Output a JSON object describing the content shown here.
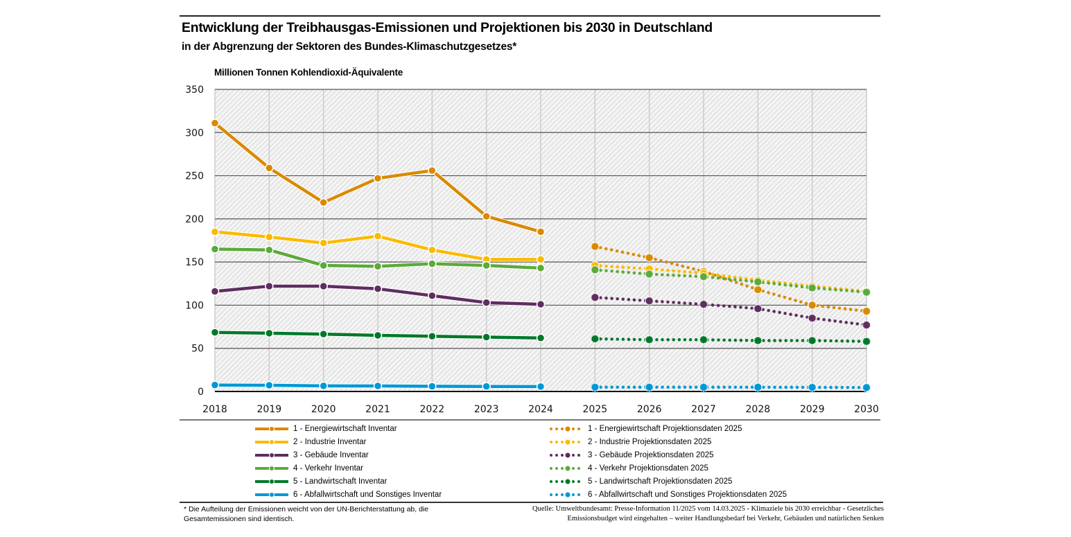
{
  "header": {
    "title": "Entwicklung der Treibhausgas-Emissionen und Projektionen bis 2030 in Deutschland",
    "subtitle": "in der Abgrenzung der Sektoren des Bundes-Klimaschutzgesetzes*",
    "unit_label": "Millionen Tonnen Kohlendioxid-Äquivalente"
  },
  "chart_data": {
    "type": "line",
    "title": "Entwicklung der Treibhausgas-Emissionen und Projektionen bis 2030 in Deutschland",
    "subtitle": "in der Abgrenzung der Sektoren des Bundes-Klimaschutzgesetzes*",
    "xlabel": "",
    "ylabel": "Millionen Tonnen Kohlendioxid-Äquivalente",
    "ylim": [
      0,
      350
    ],
    "yticks": [
      0,
      50,
      100,
      150,
      200,
      250,
      300,
      350
    ],
    "x": [
      2018,
      2019,
      2020,
      2021,
      2022,
      2023,
      2024,
      2025,
      2026,
      2027,
      2028,
      2029,
      2030
    ],
    "grid": true,
    "legend_position": "bottom",
    "series": [
      {
        "name": "1 - Energiewirtschaft Inventar",
        "style": "solid",
        "color": "#D98A00",
        "x": [
          2018,
          2019,
          2020,
          2021,
          2022,
          2023,
          2024
        ],
        "values": [
          311,
          259,
          219,
          247,
          256,
          203,
          185
        ]
      },
      {
        "name": "2 - Industrie Inventar",
        "style": "solid",
        "color": "#FBBA00",
        "x": [
          2018,
          2019,
          2020,
          2021,
          2022,
          2023,
          2024
        ],
        "values": [
          185,
          179,
          172,
          180,
          164,
          153,
          153
        ]
      },
      {
        "name": "3 - Gebäude Inventar",
        "style": "solid",
        "color": "#5F2D5F",
        "x": [
          2018,
          2019,
          2020,
          2021,
          2022,
          2023,
          2024
        ],
        "values": [
          116,
          122,
          122,
          119,
          111,
          103,
          101
        ]
      },
      {
        "name": "4 - Verkehr Inventar",
        "style": "solid",
        "color": "#5BAA3A",
        "x": [
          2018,
          2019,
          2020,
          2021,
          2022,
          2023,
          2024
        ],
        "values": [
          165,
          164,
          146,
          145,
          148,
          146,
          143
        ]
      },
      {
        "name": "5 - Landwirtschaft Inventar",
        "style": "solid",
        "color": "#00782A",
        "x": [
          2018,
          2019,
          2020,
          2021,
          2022,
          2023,
          2024
        ],
        "values": [
          68.5,
          67.5,
          66.5,
          65,
          64,
          63,
          62
        ]
      },
      {
        "name": "6 - Abfallwirtschaft und Sonstiges Inventar",
        "style": "solid",
        "color": "#0098D4",
        "x": [
          2018,
          2019,
          2020,
          2021,
          2022,
          2023,
          2024
        ],
        "values": [
          7.5,
          7.2,
          6.5,
          6.4,
          6,
          5.9,
          5.7
        ]
      },
      {
        "name": "1 - Energiewirtschaft Projektionsdaten 2025",
        "style": "dotted",
        "color": "#D98A00",
        "x": [
          2025,
          2026,
          2027,
          2028,
          2029,
          2030
        ],
        "values": [
          168,
          155,
          139,
          118,
          100,
          93
        ]
      },
      {
        "name": "2 - Industrie Projektionsdaten 2025",
        "style": "dotted",
        "color": "#FBBA00",
        "x": [
          2025,
          2026,
          2027,
          2028,
          2029,
          2030
        ],
        "values": [
          146,
          142,
          137,
          129,
          122,
          116
        ]
      },
      {
        "name": "3 - Gebäude Projektionsdaten 2025",
        "style": "dotted",
        "color": "#5F2D5F",
        "x": [
          2025,
          2026,
          2027,
          2028,
          2029,
          2030
        ],
        "values": [
          109,
          105,
          101,
          96,
          85,
          77
        ]
      },
      {
        "name": "4 - Verkehr Projektionsdaten 2025",
        "style": "dotted",
        "color": "#5BAA3A",
        "x": [
          2025,
          2026,
          2027,
          2028,
          2029,
          2030
        ],
        "values": [
          141,
          136,
          133,
          127,
          120,
          115
        ]
      },
      {
        "name": "5 - Landwirtschaft Projektionsdaten 2025",
        "style": "dotted",
        "color": "#00782A",
        "x": [
          2025,
          2026,
          2027,
          2028,
          2029,
          2030
        ],
        "values": [
          61,
          60,
          60,
          59,
          59,
          58
        ]
      },
      {
        "name": "6 - Abfallwirtschaft und Sonstiges Projektionsdaten 2025",
        "style": "dotted",
        "color": "#0098D4",
        "x": [
          2025,
          2026,
          2027,
          2028,
          2029,
          2030
        ],
        "values": [
          5,
          5,
          5,
          5,
          4.8,
          4.6
        ]
      }
    ]
  },
  "legend": {
    "inventory": [
      {
        "label": "1 - Energiewirtschaft Inventar",
        "color": "#D98A00"
      },
      {
        "label": "2 - Industrie Inventar",
        "color": "#FBBA00"
      },
      {
        "label": "3 - Gebäude Inventar",
        "color": "#5F2D5F"
      },
      {
        "label": "4 - Verkehr Inventar",
        "color": "#5BAA3A"
      },
      {
        "label": "5 - Landwirtschaft Inventar",
        "color": "#00782A"
      },
      {
        "label": "6 - Abfallwirtschaft und Sonstiges Inventar",
        "color": "#0098D4"
      }
    ],
    "projection": [
      {
        "label": "1 - Energiewirtschaft Projektionsdaten 2025",
        "color": "#D98A00"
      },
      {
        "label": "2 - Industrie Projektionsdaten 2025",
        "color": "#FBBA00"
      },
      {
        "label": "3 - Gebäude Projektionsdaten 2025",
        "color": "#5F2D5F"
      },
      {
        "label": "4 - Verkehr Projektionsdaten 2025",
        "color": "#5BAA3A"
      },
      {
        "label": "5 - Landwirtschaft Projektionsdaten 2025",
        "color": "#00782A"
      },
      {
        "label": "6 - Abfallwirtschaft und Sonstiges Projektionsdaten 2025",
        "color": "#0098D4"
      }
    ]
  },
  "footer": {
    "footnote": "* Die Aufteilung der Emissionen weicht von der UN-Berichterstattung ab, die Gesamtemissionen sind identisch.",
    "source_line1": "Quelle: Umweltbundesamt: Presse-Information 11/2025 vom 14.03.2025 - Klimaziele bis 2030 erreichbar - Gesetzliches",
    "source_line2": "Emissionsbudget wird eingehalten – weiter Handlungsbedarf bei Verkehr, Gebäuden und natürlichen Senken"
  }
}
